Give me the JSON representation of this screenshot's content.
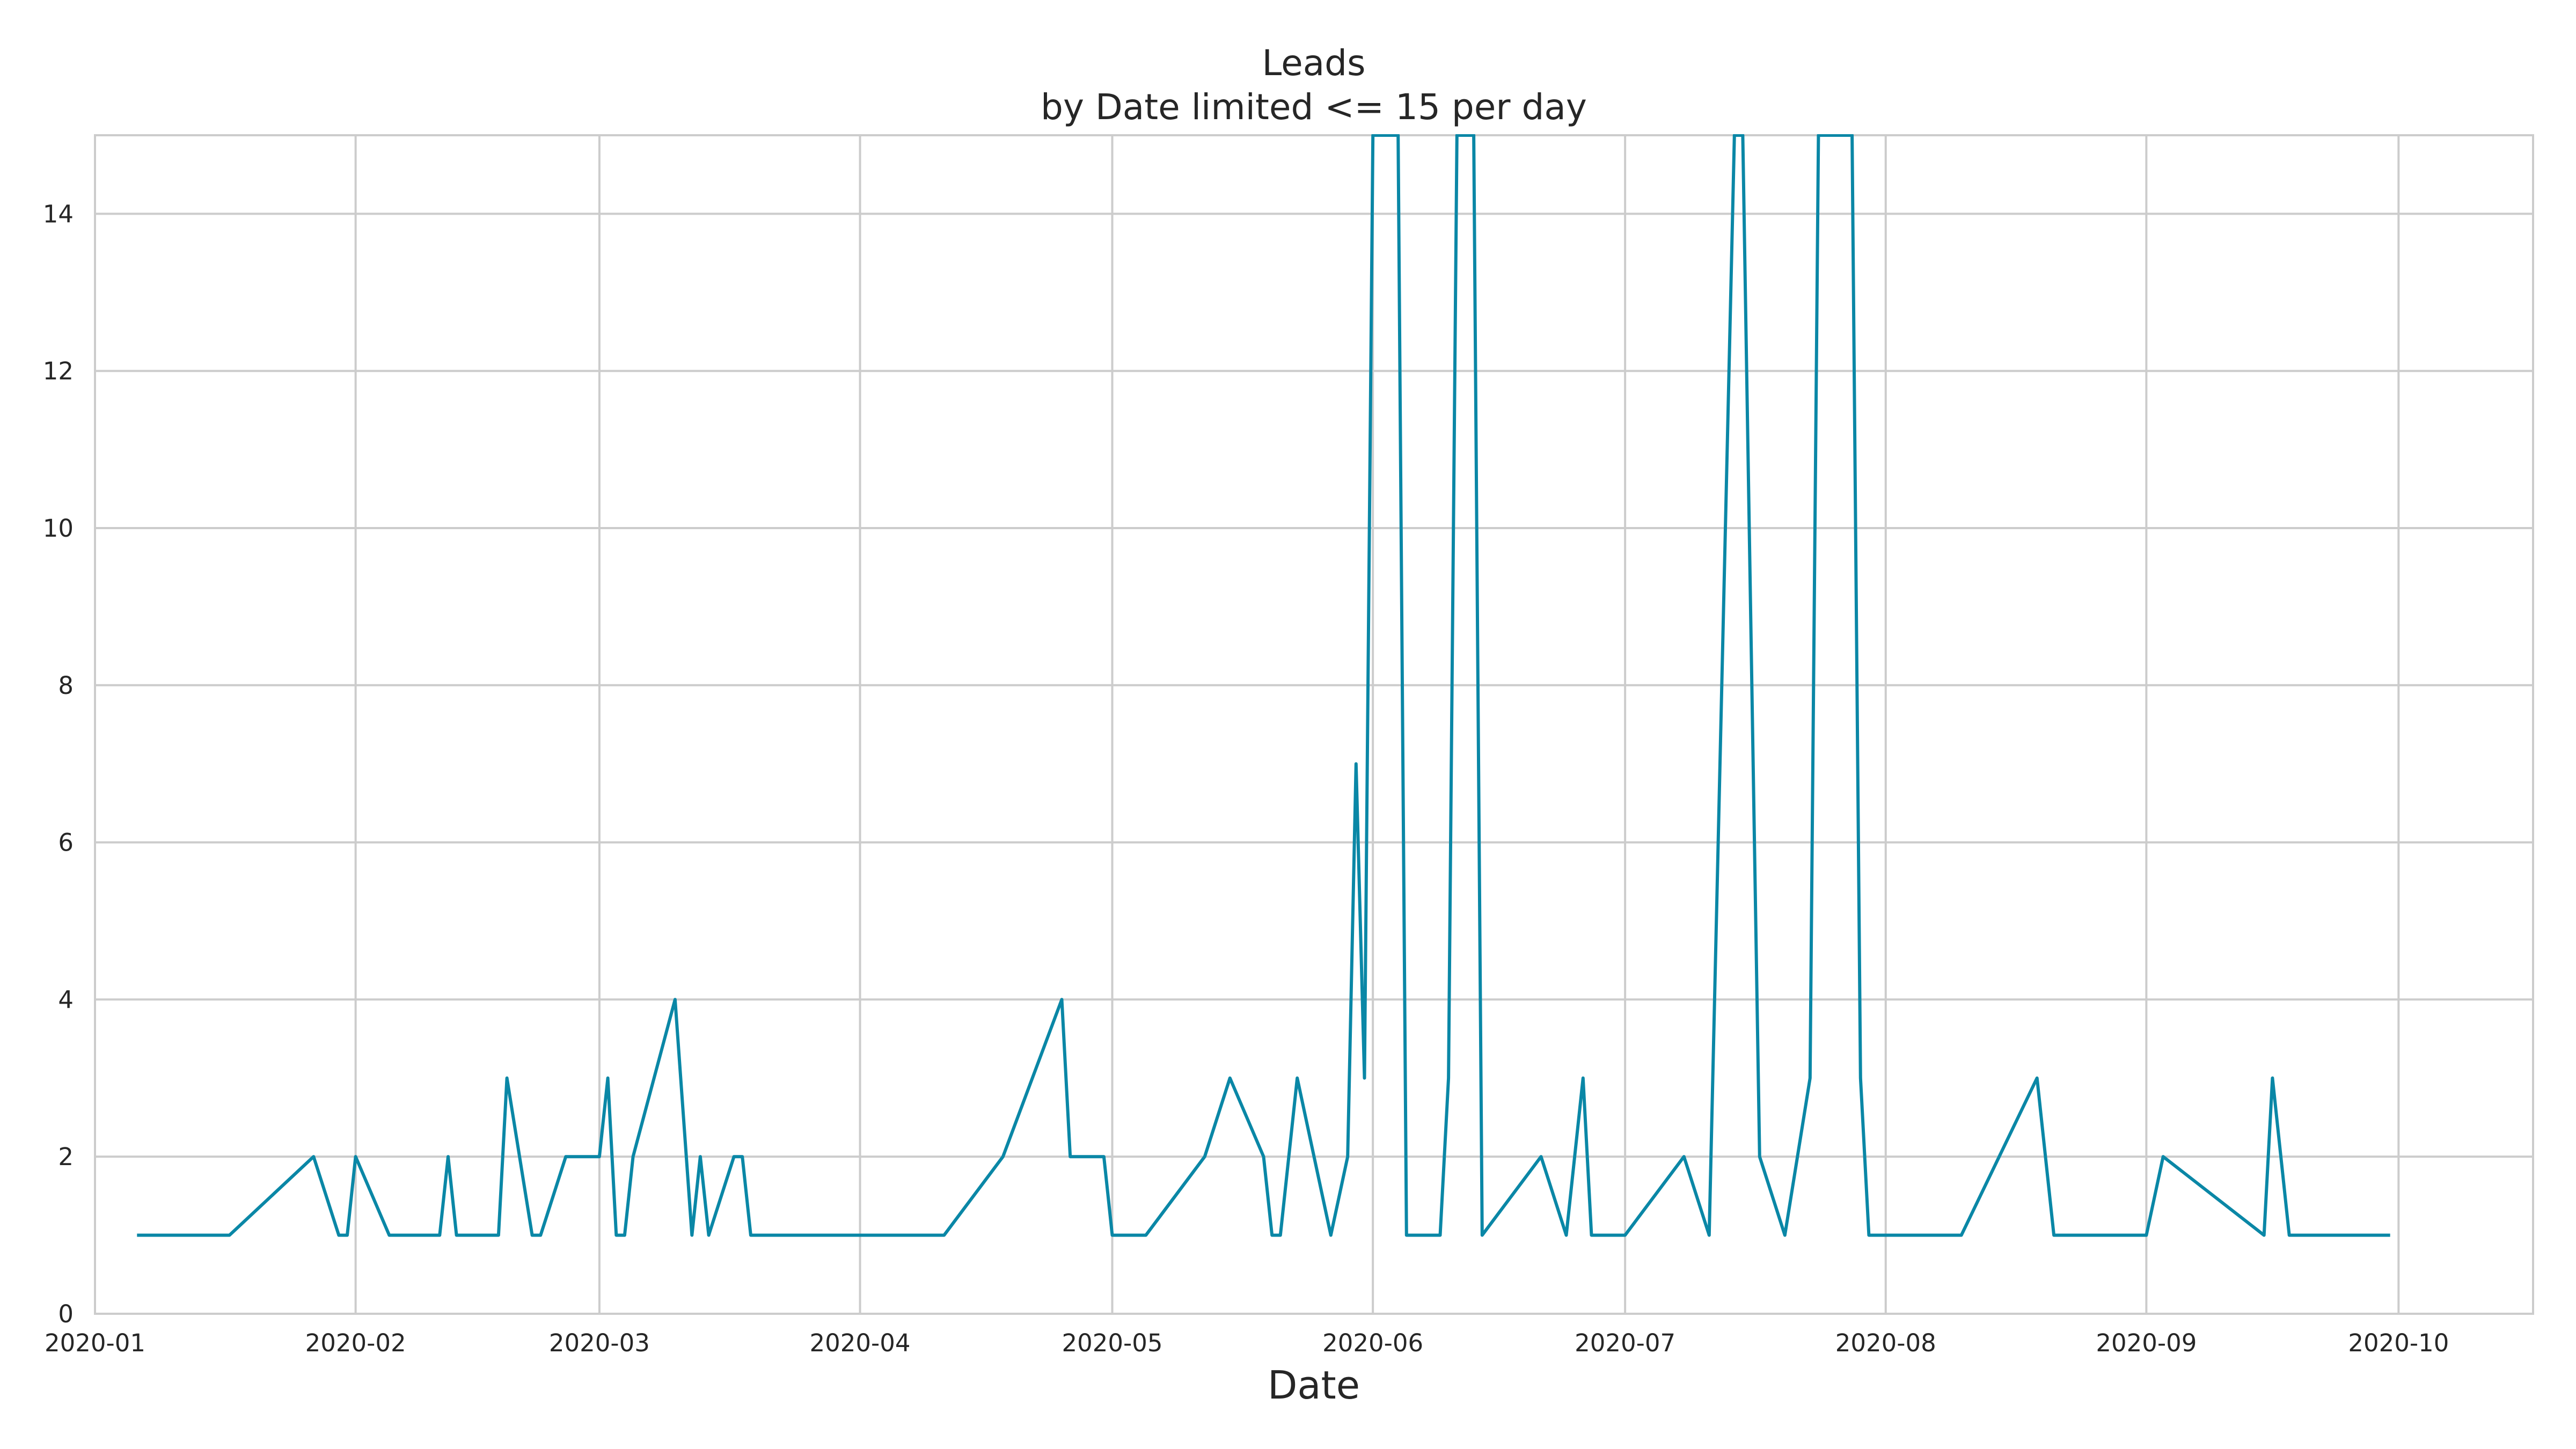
{
  "chart_data": {
    "type": "line",
    "title": "Leads",
    "subtitle": "by Date limited <= 15 per day",
    "xlabel": "Date",
    "ylabel": "",
    "ylim": [
      0,
      15
    ],
    "xlim": [
      "2020-01-01",
      "2020-10-17"
    ],
    "grid": true,
    "x_ticks": [
      "2020-01",
      "2020-02",
      "2020-03",
      "2020-04",
      "2020-05",
      "2020-06",
      "2020-07",
      "2020-08",
      "2020-09",
      "2020-10"
    ],
    "y_ticks": [
      0,
      2,
      4,
      6,
      8,
      10,
      12,
      14
    ],
    "series_color": "#0a87a6",
    "points": [
      [
        "2020-01-06",
        1
      ],
      [
        "2020-01-17",
        1
      ],
      [
        "2020-01-27",
        2
      ],
      [
        "2020-01-30",
        1
      ],
      [
        "2020-01-31",
        1
      ],
      [
        "2020-02-01",
        2
      ],
      [
        "2020-02-05",
        1
      ],
      [
        "2020-02-11",
        1
      ],
      [
        "2020-02-12",
        2
      ],
      [
        "2020-02-13",
        1
      ],
      [
        "2020-02-18",
        1
      ],
      [
        "2020-02-19",
        3
      ],
      [
        "2020-02-22",
        1
      ],
      [
        "2020-02-23",
        1
      ],
      [
        "2020-02-26",
        2
      ],
      [
        "2020-03-01",
        2
      ],
      [
        "2020-03-02",
        3
      ],
      [
        "2020-03-03",
        1
      ],
      [
        "2020-03-04",
        1
      ],
      [
        "2020-03-05",
        2
      ],
      [
        "2020-03-10",
        4
      ],
      [
        "2020-03-12",
        1
      ],
      [
        "2020-03-13",
        2
      ],
      [
        "2020-03-14",
        1
      ],
      [
        "2020-03-17",
        2
      ],
      [
        "2020-03-18",
        2
      ],
      [
        "2020-03-19",
        1
      ],
      [
        "2020-04-11",
        1
      ],
      [
        "2020-04-18",
        2
      ],
      [
        "2020-04-25",
        4
      ],
      [
        "2020-04-26",
        2
      ],
      [
        "2020-04-30",
        2
      ],
      [
        "2020-05-01",
        1
      ],
      [
        "2020-05-05",
        1
      ],
      [
        "2020-05-12",
        2
      ],
      [
        "2020-05-15",
        3
      ],
      [
        "2020-05-19",
        2
      ],
      [
        "2020-05-20",
        1
      ],
      [
        "2020-05-21",
        1
      ],
      [
        "2020-05-23",
        3
      ],
      [
        "2020-05-27",
        1
      ],
      [
        "2020-05-29",
        2
      ],
      [
        "2020-05-30",
        7
      ],
      [
        "2020-05-31",
        3
      ],
      [
        "2020-06-01",
        15
      ],
      [
        "2020-06-04",
        15
      ],
      [
        "2020-06-05",
        1
      ],
      [
        "2020-06-09",
        1
      ],
      [
        "2020-06-10",
        3
      ],
      [
        "2020-06-11",
        15
      ],
      [
        "2020-06-13",
        15
      ],
      [
        "2020-06-14",
        1
      ],
      [
        "2020-06-21",
        2
      ],
      [
        "2020-06-24",
        1
      ],
      [
        "2020-06-26",
        3
      ],
      [
        "2020-06-27",
        1
      ],
      [
        "2020-07-01",
        1
      ],
      [
        "2020-07-08",
        2
      ],
      [
        "2020-07-11",
        1
      ],
      [
        "2020-07-14",
        15
      ],
      [
        "2020-07-15",
        15
      ],
      [
        "2020-07-17",
        2
      ],
      [
        "2020-07-20",
        1
      ],
      [
        "2020-07-23",
        3
      ],
      [
        "2020-07-24",
        15
      ],
      [
        "2020-07-28",
        15
      ],
      [
        "2020-07-29",
        3
      ],
      [
        "2020-07-30",
        1
      ],
      [
        "2020-08-10",
        1
      ],
      [
        "2020-08-19",
        3
      ],
      [
        "2020-08-21",
        1
      ],
      [
        "2020-09-01",
        1
      ],
      [
        "2020-09-03",
        2
      ],
      [
        "2020-09-15",
        1
      ],
      [
        "2020-09-16",
        3
      ],
      [
        "2020-09-18",
        1
      ],
      [
        "2020-09-30",
        1
      ]
    ]
  }
}
